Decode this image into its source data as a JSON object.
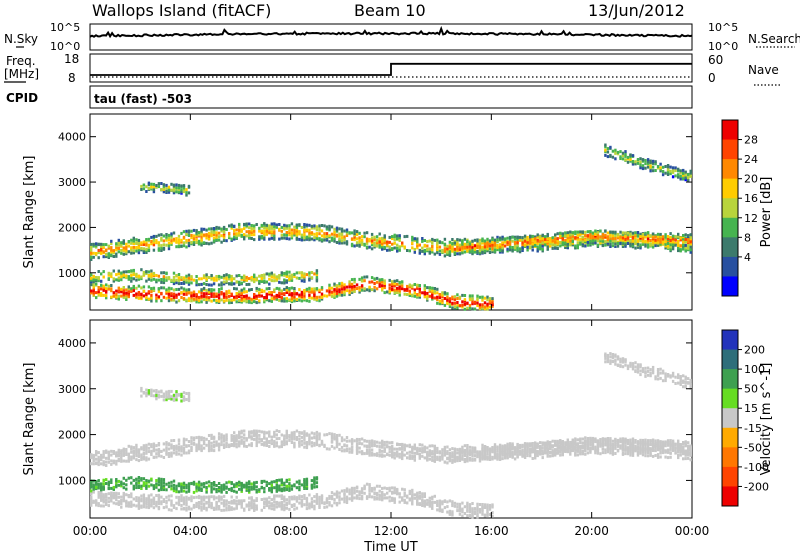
{
  "header": {
    "station": "Wallops Island (fitACF)",
    "beam": "Beam 10",
    "date": "13/Jun/2012"
  },
  "noise_panel": {
    "left_label": "N.Sky",
    "right_label": "N.Search",
    "left_ticks": [
      "10^5",
      "10^0"
    ],
    "right_ticks": [
      "10^5",
      "10^0"
    ]
  },
  "freq_panel": {
    "left_label_1": "Freq.",
    "left_label_2": "[MHz]",
    "right_label": "Nave",
    "left_ticks": [
      "18",
      "8"
    ],
    "right_ticks": [
      "60",
      "0"
    ],
    "freq_levels_mhz": [
      10.5,
      14.5
    ],
    "freq_step_time_hours": 12.0
  },
  "cpid_panel": {
    "label": "CPID",
    "text": "tau (fast) -503"
  },
  "x_axis": {
    "label": "Time UT",
    "ticks": [
      "00:00",
      "04:00",
      "08:00",
      "12:00",
      "16:00",
      "20:00",
      "00:00"
    ],
    "range_hours": [
      0,
      24
    ]
  },
  "power_colorbar": {
    "label": "Power [dB]",
    "ticks": [
      "28",
      "24",
      "20",
      "16",
      "12",
      "8",
      "4"
    ],
    "colors": [
      "#ee0000",
      "#ff4400",
      "#ff8800",
      "#ffcc00",
      "#b8d43c",
      "#46b450",
      "#3c7a6c",
      "#2850a0",
      "#0000ff"
    ]
  },
  "velocity_colorbar": {
    "label": "Velocity [m s^-1]",
    "ticks": [
      "200",
      "100",
      "50",
      "15",
      "-15",
      "-50",
      "-100",
      "-200"
    ],
    "colors": [
      "#2233bb",
      "#2e6e7a",
      "#3ea050",
      "#66dd22",
      "#c8c8c8",
      "#ffaa00",
      "#ff7700",
      "#ff4400",
      "#ee0000"
    ]
  },
  "chart_data": {
    "type": "heatmap",
    "title": "Wallops Island (fitACF)",
    "xlabel": "Time UT",
    "ylabel": "Slant Range [km]",
    "xlim": [
      0,
      24
    ],
    "ylim": [
      180,
      4500
    ],
    "y_ticks": [
      1000,
      2000,
      3000,
      4000
    ],
    "panels": [
      "Power",
      "Velocity"
    ],
    "bands": [
      {
        "t": [
          0.0,
          4.0,
          6.0,
          8.0,
          9.5,
          11.0,
          12.0,
          14.0,
          16.0,
          18.0,
          20.0,
          22.0,
          24.0
        ],
        "r": [
          1450,
          1750,
          1900,
          1900,
          1850,
          1700,
          1650,
          1550,
          1600,
          1650,
          1750,
          1700,
          1600
        ],
        "w": 160,
        "p": 16,
        "v": 0
      },
      {
        "t": [
          0.0,
          3.0,
          6.0,
          9.0,
          11.0,
          13.0,
          14.5,
          16.0
        ],
        "r": [
          600,
          500,
          480,
          520,
          750,
          600,
          350,
          300
        ],
        "w": 140,
        "p": 22,
        "v": 0
      },
      {
        "t": [
          0.0,
          2.0,
          4.0,
          6.0,
          8.0,
          9.0
        ],
        "r": [
          900,
          950,
          850,
          850,
          900,
          950
        ],
        "w": 120,
        "p": 14,
        "v": 40
      },
      {
        "t": [
          14.0,
          16.0,
          18.0,
          20.0,
          22.0,
          24.0
        ],
        "r": [
          1500,
          1600,
          1700,
          1800,
          1750,
          1700
        ],
        "w": 130,
        "p": 18,
        "v": 0
      },
      {
        "t": [
          20.5,
          22.0,
          24.0
        ],
        "r": [
          3700,
          3400,
          3100
        ],
        "w": 110,
        "p": 12,
        "v": 0
      },
      {
        "t": [
          2.0,
          3.0,
          4.0
        ],
        "r": [
          2900,
          2850,
          2800
        ],
        "w": 90,
        "p": 12,
        "v": 5
      }
    ]
  }
}
